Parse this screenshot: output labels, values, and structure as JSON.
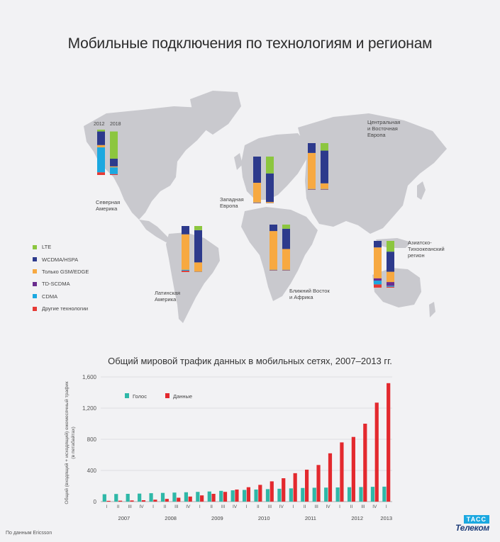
{
  "title": "Мобильные подключения по технологиям и регионам",
  "map": {
    "legend": [
      {
        "label": "LTE",
        "color": "#8cc63f"
      },
      {
        "label": "WCDMA/HSPA",
        "color": "#2d3a8c"
      },
      {
        "label": "Только GSM/EDGE",
        "color": "#f7a941"
      },
      {
        "label": "TD-SCDMA",
        "color": "#6a2c8e"
      },
      {
        "label": "CDMA",
        "color": "#1ba8e0"
      },
      {
        "label": "Другие технологии",
        "color": "#e63a35"
      }
    ],
    "years": [
      "2012",
      "2018"
    ],
    "regions": [
      {
        "name": "Северная\nАмерика",
        "stacks": [
          [
            0.04,
            0.3,
            0.05,
            0,
            0.55,
            0.06
          ],
          [
            0.6,
            0.17,
            0.02,
            0,
            0.15,
            0.02
          ]
        ]
      },
      {
        "name": "Западная\nЕвропа",
        "stacks": [
          [
            0,
            0.56,
            0.42,
            0,
            0.01,
            0.01
          ],
          [
            0.36,
            0.61,
            0.02,
            0,
            0.005,
            0.005
          ]
        ]
      },
      {
        "name": "Центральная\nи Восточная\nЕвропа",
        "stacks": [
          [
            0,
            0.21,
            0.77,
            0,
            0.01,
            0.01
          ],
          [
            0.16,
            0.7,
            0.12,
            0,
            0.01,
            0.01
          ]
        ]
      },
      {
        "name": "Латинская\nАмерика",
        "stacks": [
          [
            0,
            0.18,
            0.77,
            0,
            0.02,
            0.03
          ],
          [
            0.09,
            0.7,
            0.2,
            0,
            0.005,
            0.005
          ]
        ]
      },
      {
        "name": "Ближний Восток\nи Африка",
        "stacks": [
          [
            0,
            0.14,
            0.84,
            0,
            0.01,
            0.01
          ],
          [
            0.09,
            0.44,
            0.45,
            0,
            0.01,
            0.01
          ]
        ]
      },
      {
        "name": "Азиатско-\nТихоокеанский\nрегион",
        "stacks": [
          [
            0,
            0.14,
            0.66,
            0.05,
            0.08,
            0.07
          ],
          [
            0.23,
            0.43,
            0.22,
            0.08,
            0.02,
            0.02
          ]
        ]
      }
    ]
  },
  "chart_title": "Общий мировой трафик данных в мобильных сетях, 2007–2013 гг.",
  "chart_data": {
    "type": "bar",
    "title": "Общий мировой трафик данных в мобильных сетях, 2007–2013 гг.",
    "ylabel": "Общий (входящий + исходящий) ежемесячный трафик\n(в петабайтах)",
    "xlabel": "",
    "ylim": [
      0,
      1600
    ],
    "yticks": [
      "0",
      "400",
      "800",
      "1,200",
      "1,600"
    ],
    "categories": [
      "I",
      "II",
      "III",
      "IV",
      "I",
      "II",
      "III",
      "IV",
      "I",
      "II",
      "III",
      "IV",
      "I",
      "II",
      "III",
      "IV",
      "I",
      "II",
      "III",
      "IV",
      "I",
      "II",
      "III",
      "IV",
      "I"
    ],
    "years": [
      "2007",
      "2008",
      "2009",
      "2010",
      "2011",
      "2012",
      "2013"
    ],
    "legend_position": "top-left",
    "series": [
      {
        "name": "Голос",
        "color": "#2fb8a8",
        "values": [
          95,
          98,
          100,
          103,
          108,
          112,
          116,
          120,
          125,
          130,
          138,
          145,
          150,
          155,
          160,
          165,
          170,
          175,
          178,
          180,
          182,
          185,
          187,
          190,
          192
        ]
      },
      {
        "name": "Данные",
        "color": "#e3292e",
        "values": [
          10,
          12,
          15,
          18,
          25,
          35,
          50,
          65,
          80,
          100,
          125,
          155,
          185,
          215,
          260,
          300,
          365,
          410,
          470,
          620,
          760,
          830,
          1000,
          1270,
          1520
        ]
      }
    ]
  },
  "source": "По данным Ericsson",
  "logo": {
    "top": "ТАСС",
    "bottom": "Телеком"
  }
}
